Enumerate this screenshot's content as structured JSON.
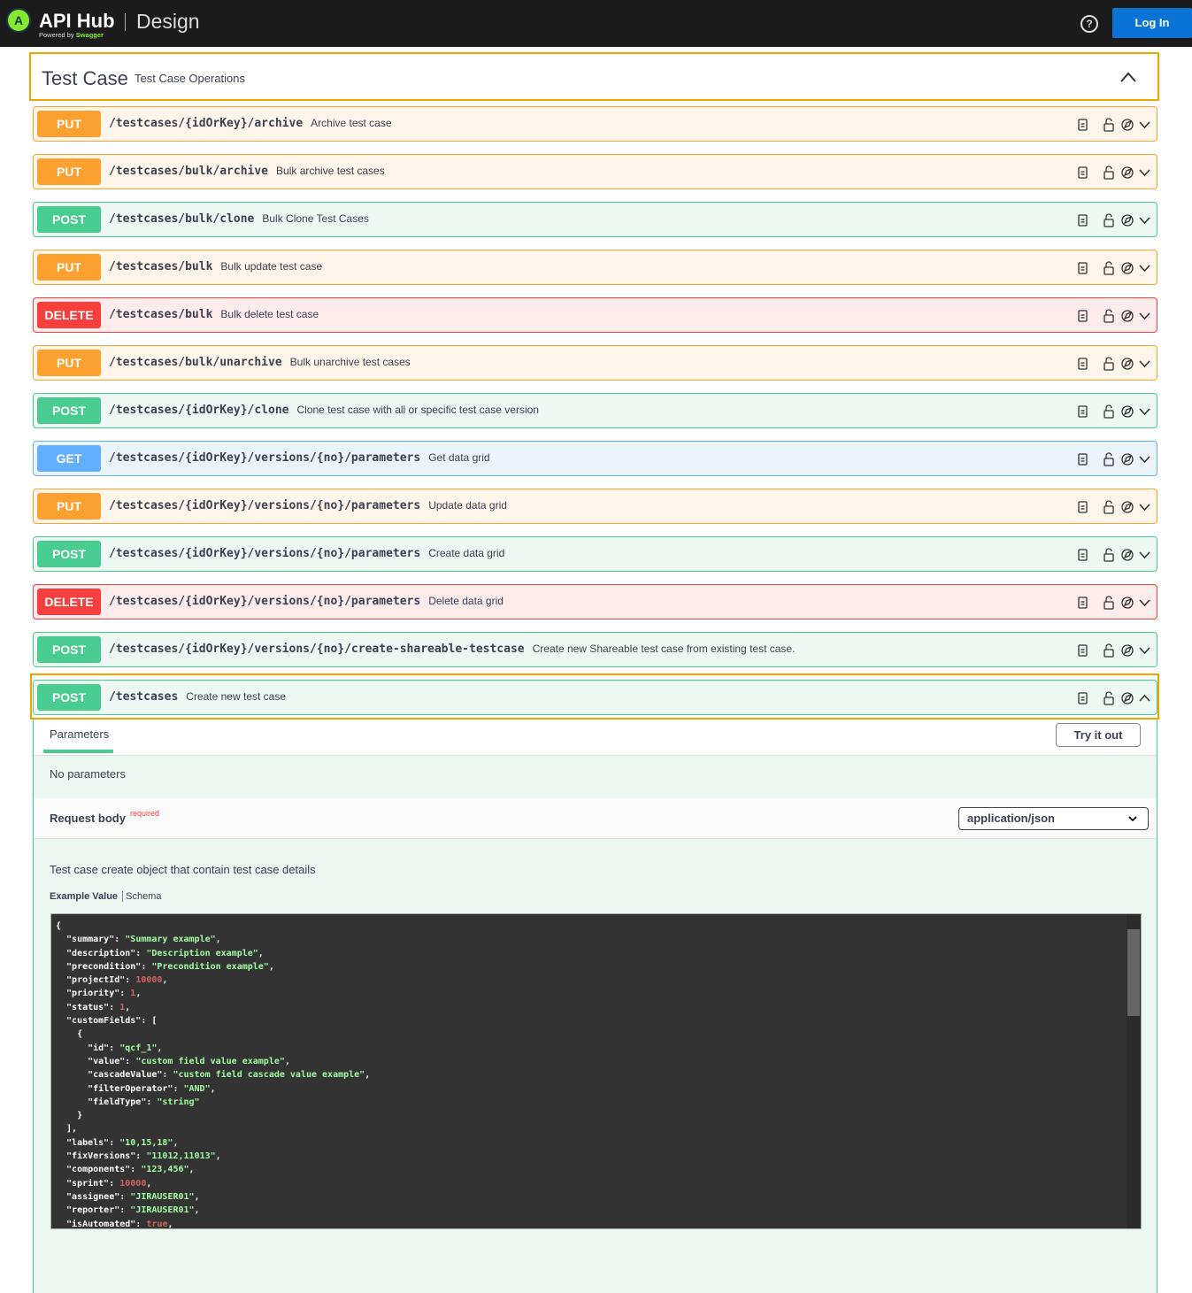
{
  "header": {
    "logo_letter": "A",
    "brand": "API Hub",
    "powered_by": "Powered by",
    "swagger": "Swagger",
    "product": "Design",
    "help": "?",
    "login": "Log In"
  },
  "section": {
    "title": "Test Case",
    "description": "Test Case Operations"
  },
  "operations": [
    {
      "method": "PUT",
      "path": "/testcases/{idOrKey}/archive",
      "summary": "Archive test case"
    },
    {
      "method": "PUT",
      "path": "/testcases/bulk/archive",
      "summary": "Bulk archive test cases"
    },
    {
      "method": "POST",
      "path": "/testcases/bulk/clone",
      "summary": "Bulk Clone Test Cases"
    },
    {
      "method": "PUT",
      "path": "/testcases/bulk",
      "summary": "Bulk update test case"
    },
    {
      "method": "DELETE",
      "path": "/testcases/bulk",
      "summary": "Bulk delete test case"
    },
    {
      "method": "PUT",
      "path": "/testcases/bulk/unarchive",
      "summary": "Bulk unarchive test cases"
    },
    {
      "method": "POST",
      "path": "/testcases/{idOrKey}/clone",
      "summary": "Clone test case with all or specific test case version"
    },
    {
      "method": "GET",
      "path": "/testcases/{idOrKey}/versions/{no}/parameters",
      "summary": "Get data grid"
    },
    {
      "method": "PUT",
      "path": "/testcases/{idOrKey}/versions/{no}/parameters",
      "summary": "Update data grid"
    },
    {
      "method": "POST",
      "path": "/testcases/{idOrKey}/versions/{no}/parameters",
      "summary": "Create data grid"
    },
    {
      "method": "DELETE",
      "path": "/testcases/{idOrKey}/versions/{no}/parameters",
      "summary": "Delete data grid"
    },
    {
      "method": "POST",
      "path": "/testcases/{idOrKey}/versions/{no}/create-shareable-testcase",
      "summary": "Create new Shareable test case from existing test case."
    },
    {
      "method": "POST",
      "path": "/testcases",
      "summary": "Create new test case"
    }
  ],
  "expanded": {
    "tab": "Parameters",
    "try_it_out": "Try it out",
    "no_parameters": "No parameters",
    "request_body": "Request body",
    "required": "required",
    "content_type": "application/json",
    "body_description": "Test case create object that contain test case details",
    "example_tab": "Example Value",
    "schema_tab": "Schema",
    "code_lines": [
      "{",
      "  \"summary\": \"Summary example\",",
      "  \"description\": \"Description example\",",
      "  \"precondition\": \"Precondition example\",",
      "  \"projectId\": 10000,",
      "  \"priority\": 1,",
      "  \"status\": 1,",
      "  \"customFields\": [",
      "    {",
      "      \"id\": \"qcf_1\",",
      "      \"value\": \"custom field value example\",",
      "      \"cascadeValue\": \"custom field cascade value example\",",
      "      \"filterOperator\": \"AND\",",
      "      \"fieldType\": \"string\"",
      "    }",
      "  ],",
      "  \"labels\": \"10,15,18\",",
      "  \"fixVersions\": \"11012,11013\",",
      "  \"components\": \"123,456\",",
      "  \"sprint\": 10000,",
      "  \"assignee\": \"JIRAUSER01\",",
      "  \"reporter\": \"JIRAUSER01\",",
      "  \"isAutomated\": true,"
    ]
  }
}
